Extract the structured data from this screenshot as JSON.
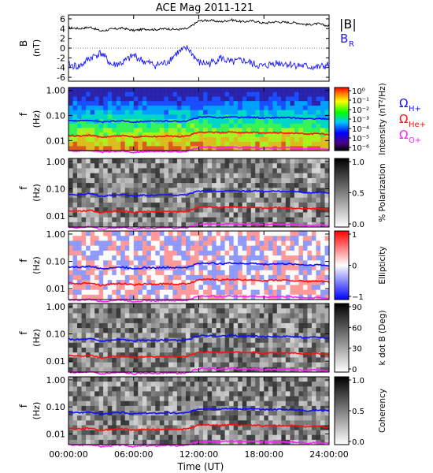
{
  "title": "ACE Mag 2011-121",
  "colors": {
    "bmag": "#000000",
    "br": "#1a1aff",
    "h_plus": "#1010ff",
    "he_plus": "#ff1010",
    "o_plus": "#ff20ff"
  },
  "chart_data": [
    {
      "type": "line",
      "panel": "magnetic-field",
      "ylabel": "B",
      "yunit": "(nT)",
      "ylim": [
        -6.8,
        6.8
      ],
      "yticks": [
        "6",
        "4",
        "2",
        "0",
        "-2",
        "-4",
        "-6"
      ],
      "legend": [
        "|B|",
        "B_R"
      ],
      "series": [
        {
          "name": "|B|",
          "color": "#000000",
          "x_hours": [
            0,
            1,
            2,
            3,
            4,
            5,
            6,
            7,
            8,
            9,
            10,
            11,
            12,
            13,
            14,
            15,
            16,
            17,
            18,
            19,
            20,
            21,
            22,
            23,
            24
          ],
          "values": [
            4.2,
            4.0,
            4.3,
            3.5,
            3.9,
            4.1,
            3.6,
            3.9,
            3.8,
            4.0,
            3.8,
            4.0,
            5.6,
            5.7,
            5.4,
            5.8,
            5.4,
            5.6,
            5.1,
            5.4,
            5.3,
            5.2,
            4.8,
            5.0,
            4.5
          ]
        },
        {
          "name": "B_R",
          "color": "#1a1aff",
          "x_hours": [
            0,
            1,
            2,
            3,
            4,
            5,
            6,
            7,
            8,
            9,
            10,
            11,
            12,
            13,
            14,
            15,
            16,
            17,
            18,
            19,
            20,
            21,
            22,
            23,
            24
          ],
          "values": [
            -3.5,
            -3.8,
            -2.0,
            -1.0,
            -3.5,
            -3.0,
            -1.5,
            -2.8,
            -3.5,
            -3.0,
            -1.0,
            0.0,
            -3.0,
            -3.2,
            -2.0,
            -3.0,
            -2.5,
            -3.3,
            -3.8,
            -3.0,
            -3.2,
            -3.5,
            -3.8,
            -4.0,
            -3.5
          ]
        }
      ],
      "x_ticks": [
        "00:00:00",
        "06:00:00",
        "12:00:00",
        "18:00:00",
        "24:00:00"
      ]
    },
    {
      "type": "heatmap",
      "panel": "intensity",
      "ylabel": "f",
      "yunit": "(Hz)",
      "yscale": "log",
      "ylim": [
        0.004,
        1.3
      ],
      "yticks": [
        "1.00",
        "0.10",
        "0.01"
      ],
      "colorbar_label": "Intensity (nT²/Hz)",
      "colorbar_ticks": [
        "10⁰",
        "10⁻¹",
        "10⁻²",
        "10⁻³",
        "10⁻⁴",
        "10⁻⁵",
        "10⁻⁶"
      ],
      "overlay_legend": [
        "Ω_H+",
        "Ω_He+",
        "Ω_O+"
      ]
    },
    {
      "type": "heatmap",
      "panel": "polarization",
      "ylabel": "f",
      "yunit": "(Hz)",
      "yscale": "log",
      "ylim": [
        0.004,
        1.3
      ],
      "yticks": [
        "1.00",
        "0.10",
        "0.01"
      ],
      "colorbar_label": "% Polarization",
      "colorbar_ticks": [
        "1.0",
        "0.5",
        "0.0"
      ]
    },
    {
      "type": "heatmap",
      "panel": "ellipticity",
      "ylabel": "f",
      "yunit": "(Hz)",
      "yscale": "log",
      "ylim": [
        0.004,
        1.3
      ],
      "yticks": [
        "1.00",
        "0.10",
        "0.01"
      ],
      "colorbar_label": "Ellipticity",
      "colorbar_ticks": [
        "1",
        "0",
        "−1"
      ]
    },
    {
      "type": "heatmap",
      "panel": "k-dot-b",
      "ylabel": "f",
      "yunit": "(Hz)",
      "yscale": "log",
      "ylim": [
        0.004,
        1.3
      ],
      "yticks": [
        "1.00",
        "0.10",
        "0.01"
      ],
      "colorbar_label": "k dot B (Deg)",
      "colorbar_ticks": [
        "90",
        "60",
        "30",
        "0"
      ]
    },
    {
      "type": "heatmap",
      "panel": "coherency",
      "ylabel": "f",
      "yunit": "(Hz)",
      "yscale": "log",
      "ylim": [
        0.004,
        1.3
      ],
      "yticks": [
        "1.00",
        "0.10",
        "0.01"
      ],
      "colorbar_label": "Coherency",
      "colorbar_ticks": [
        "1.0",
        "0.5",
        "0.0"
      ]
    }
  ],
  "gyrofrequency_lines": {
    "x_hours": [
      0,
      1,
      2,
      3,
      4,
      5,
      6,
      7,
      8,
      9,
      10,
      11,
      12,
      13,
      14,
      15,
      16,
      17,
      18,
      19,
      20,
      21,
      22,
      23,
      24
    ],
    "H+": [
      0.064,
      0.061,
      0.066,
      0.054,
      0.059,
      0.062,
      0.055,
      0.059,
      0.058,
      0.061,
      0.058,
      0.061,
      0.085,
      0.087,
      0.082,
      0.088,
      0.082,
      0.085,
      0.078,
      0.082,
      0.081,
      0.079,
      0.073,
      0.076,
      0.069
    ],
    "He+": [
      0.016,
      0.0153,
      0.0164,
      0.0134,
      0.0149,
      0.0156,
      0.0137,
      0.0149,
      0.0145,
      0.0153,
      0.0145,
      0.0153,
      0.0213,
      0.0218,
      0.0206,
      0.0221,
      0.0206,
      0.0213,
      0.0194,
      0.0206,
      0.0202,
      0.0198,
      0.0183,
      0.0191,
      0.0172
    ],
    "O+": [
      0.004,
      0.0038,
      0.0041,
      0.0034,
      0.0037,
      0.0039,
      0.0034,
      0.0037,
      0.0036,
      0.0038,
      0.0036,
      0.0038,
      0.0053,
      0.0054,
      0.0051,
      0.0055,
      0.0051,
      0.0053,
      0.0049,
      0.0051,
      0.0051,
      0.0049,
      0.0046,
      0.0048,
      0.0043
    ]
  },
  "x_axis": {
    "label": "Time (UT)",
    "ticks": [
      "00:00:00",
      "06:00:00",
      "12:00:00",
      "18:00:00",
      "24:00:00"
    ],
    "range_hours": [
      0,
      24
    ]
  },
  "legend_labels": {
    "bmag": "|B|",
    "br_main": "B",
    "br_sub": "R",
    "omega": "Ω",
    "h_sub": "H+",
    "he_sub": "He+",
    "o_sub": "O+"
  }
}
